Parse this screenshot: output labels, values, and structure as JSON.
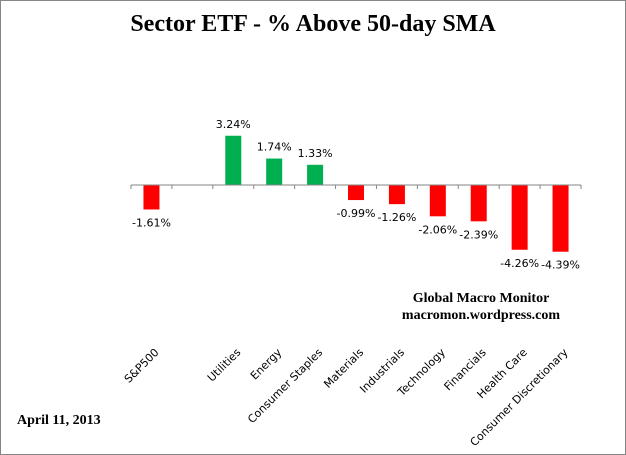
{
  "chart_data": {
    "type": "bar",
    "title": "Sector ETF - % Above 50-day SMA",
    "categories": [
      "S&P500",
      "",
      "Utilities",
      "Energy",
      "Consumer Staples",
      "Materials",
      "Industrials",
      "Technology",
      "Financials",
      "Health Care",
      "Consumer Discretionary"
    ],
    "values": [
      -1.61,
      null,
      3.24,
      1.74,
      1.33,
      -0.99,
      -1.26,
      -2.06,
      -2.39,
      -4.26,
      -4.39
    ],
    "data_labels": [
      "-1.61%",
      "",
      "3.24%",
      "1.74%",
      "1.33%",
      "-0.99%",
      "-1.26%",
      "-2.06%",
      "-2.39%",
      "-4.26%",
      "-4.39%"
    ],
    "xlabel": "",
    "ylabel": "",
    "grid": false,
    "legend": "none",
    "colors": {
      "positive": "#00B050",
      "negative": "#FF0000"
    },
    "annotations": {
      "source_line1": "Global Macro Monitor",
      "source_line2": "macromon.wordpress.com",
      "date": "April 11, 2013"
    }
  }
}
